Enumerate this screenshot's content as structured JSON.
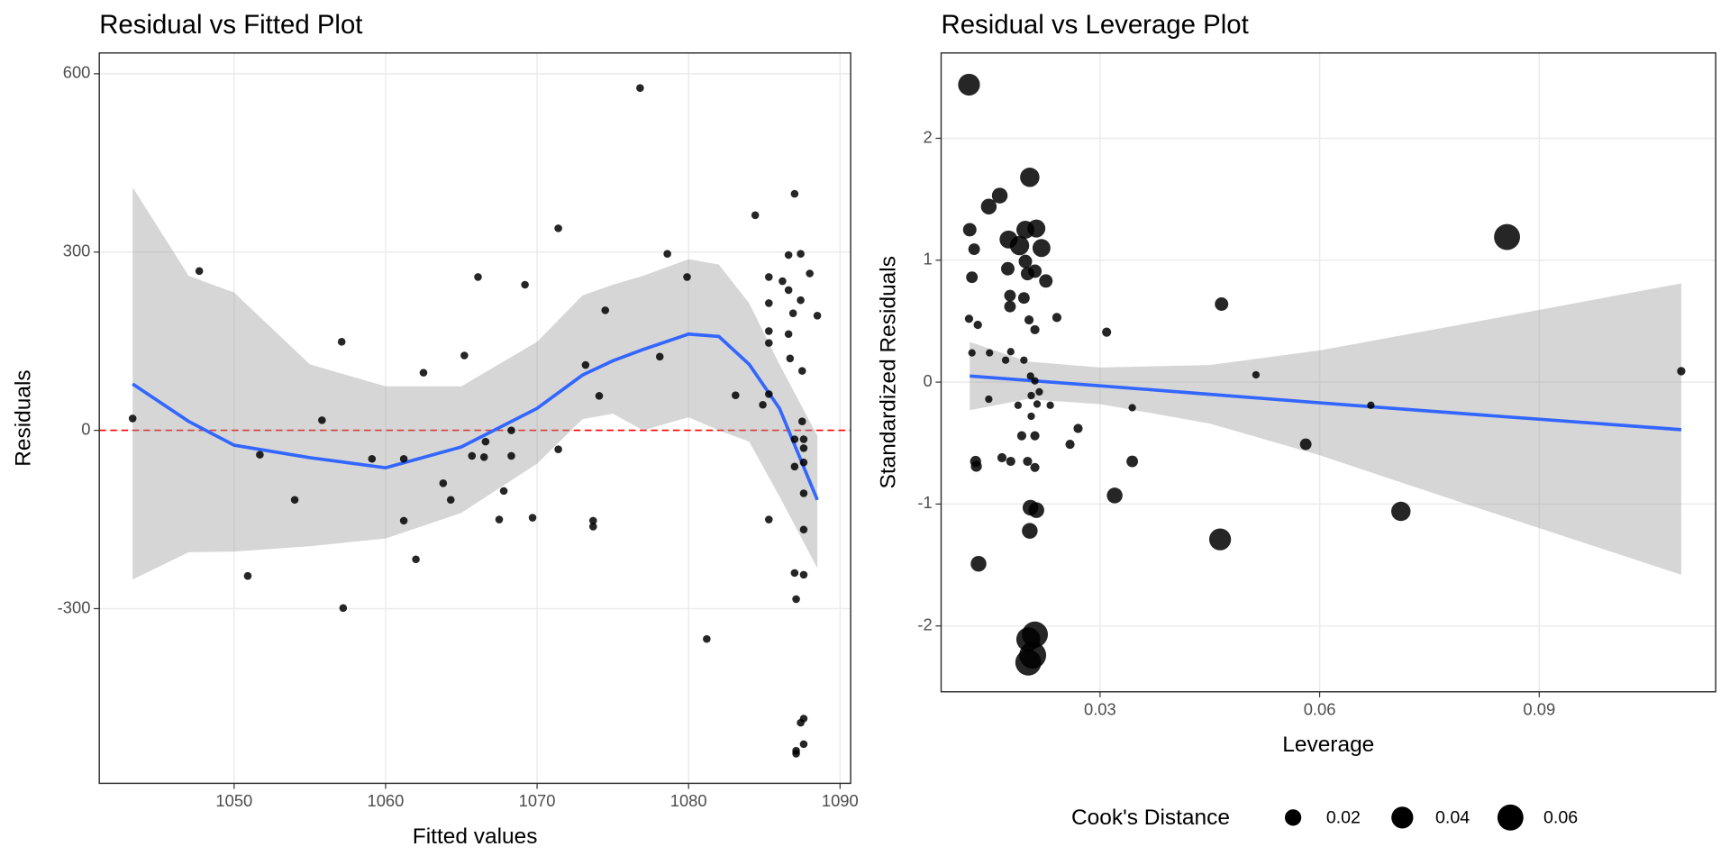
{
  "chart_data": [
    {
      "type": "scatter",
      "title": "Residual vs Fitted Plot",
      "x_label": "Fitted values",
      "y_label": "Residuals",
      "x": [
        1043.3,
        1047.7,
        1050.9,
        1051.7,
        1054.0,
        1055.8,
        1057.1,
        1057.2,
        1059.1,
        1061.2,
        1061.2,
        1062.0,
        1062.5,
        1063.8,
        1064.3,
        1065.2,
        1065.7,
        1066.1,
        1066.5,
        1066.6,
        1067.5,
        1067.8,
        1068.3,
        1068.3,
        1069.2,
        1069.7,
        1071.4,
        1071.4,
        1073.2,
        1073.7,
        1073.7,
        1074.1,
        1074.5,
        1076.8,
        1081.2,
        1078.1,
        1078.6,
        1079.9,
        1083.1,
        1084.4,
        1084.9,
        1085.3,
        1085.3,
        1085.3,
        1085.3,
        1085.3,
        1085.3,
        1086.2,
        1086.6,
        1086.6,
        1086.6,
        1086.7,
        1086.9,
        1087.0,
        1087.0,
        1087.0,
        1087.0,
        1087.1,
        1087.1,
        1087.1,
        1087.4,
        1087.4,
        1087.5,
        1087.5,
        1087.6,
        1087.6,
        1087.6,
        1087.6,
        1087.6,
        1087.6,
        1087.6,
        1087.4,
        1087.6,
        1088.0,
        1088.5
      ],
      "y": [
        20,
        268,
        -245,
        -41,
        -117,
        17,
        149,
        -299,
        -48,
        -48,
        -152,
        -217,
        97,
        -89,
        -117,
        126,
        -43,
        258,
        -45,
        -19,
        -150,
        -102,
        0,
        -43,
        245,
        -147,
        340,
        -32,
        110,
        -152,
        -162,
        58,
        202,
        576,
        -351,
        124,
        297,
        258,
        59,
        362,
        43,
        258,
        214,
        167,
        147,
        61,
        -150,
        251,
        295,
        236,
        162,
        121,
        197,
        398,
        -15,
        -61,
        -240,
        -284,
        -539,
        -544,
        297,
        219,
        100,
        15,
        -15,
        -30,
        -54,
        -106,
        -167,
        -243,
        -485,
        -492,
        -528,
        264,
        193
      ],
      "point_color": "#000000",
      "xlim": [
        1041.1,
        1090.7
      ],
      "ylim": [
        -594,
        635
      ],
      "xticks": [
        1050,
        1060,
        1070,
        1080,
        1090
      ],
      "yticks": [
        -300,
        0,
        300,
        600
      ],
      "grid": true,
      "hline": {
        "y": 0,
        "color": "#ff0000"
      },
      "smooth": {
        "color": "#3366ff",
        "band_color": "#999999",
        "x": [
          1043.3,
          1047,
          1050,
          1055,
          1060,
          1065,
          1070,
          1073,
          1075,
          1077,
          1080,
          1082,
          1084,
          1086,
          1088.5
        ],
        "y": [
          78,
          15,
          -25,
          -46,
          -63,
          -28,
          37,
          93,
          117,
          136,
          162,
          158,
          111,
          37,
          -117
        ],
        "upper": [
          409,
          260,
          232,
          111,
          74,
          74,
          149,
          227,
          245,
          260,
          288,
          279,
          214,
          111,
          -9
        ],
        "lower": [
          -251,
          -205,
          -204,
          -195,
          -182,
          -139,
          -56,
          19,
          28,
          0,
          22,
          0,
          -19,
          -111,
          -232
        ]
      }
    },
    {
      "type": "scatter",
      "title": "Residual vs Leverage Plot",
      "x_label": "Leverage",
      "y_label": "Standardized Residuals",
      "x": [
        0.0121,
        0.0163,
        0.0148,
        0.0204,
        0.0122,
        0.0128,
        0.0125,
        0.0121,
        0.0133,
        0.0125,
        0.0149,
        0.0148,
        0.013,
        0.0131,
        0.0134,
        0.0175,
        0.019,
        0.0174,
        0.0198,
        0.0177,
        0.0177,
        0.0196,
        0.0201,
        0.0198,
        0.0213,
        0.022,
        0.0211,
        0.0226,
        0.0203,
        0.0211,
        0.0241,
        0.0171,
        0.0178,
        0.0196,
        0.0205,
        0.0211,
        0.0217,
        0.0214,
        0.0188,
        0.0206,
        0.0232,
        0.0206,
        0.0211,
        0.0193,
        0.0166,
        0.0178,
        0.0201,
        0.0211,
        0.0259,
        0.027,
        0.0205,
        0.0213,
        0.0204,
        0.0211,
        0.0202,
        0.0208,
        0.0202,
        0.0309,
        0.032,
        0.0344,
        0.0344,
        0.0466,
        0.0464,
        0.0513,
        0.0581,
        0.067,
        0.0711,
        0.0856,
        0.1094
      ],
      "y": [
        2.44,
        1.53,
        1.44,
        1.68,
        1.25,
        1.09,
        0.86,
        0.52,
        0.47,
        0.24,
        0.24,
        -0.14,
        -0.65,
        -0.69,
        -1.49,
        1.17,
        1.12,
        0.93,
        0.99,
        0.71,
        0.62,
        0.69,
        0.89,
        1.25,
        1.26,
        1.1,
        0.91,
        0.83,
        0.51,
        0.43,
        0.53,
        0.18,
        0.25,
        0.18,
        0.05,
        0.01,
        -0.08,
        -0.18,
        -0.19,
        -0.28,
        -0.19,
        -0.11,
        -0.44,
        -0.44,
        -0.62,
        -0.65,
        -0.65,
        -0.7,
        -0.51,
        -0.38,
        -1.03,
        -1.05,
        -1.22,
        -2.07,
        -2.11,
        -2.24,
        -2.3,
        0.41,
        -0.93,
        -0.21,
        -0.65,
        0.64,
        -1.29,
        0.06,
        -0.51,
        -0.19,
        -1.06,
        1.19,
        0.09
      ],
      "sizes": [
        0.04,
        0.018,
        0.018,
        0.03,
        0.012,
        0.008,
        0.008,
        0.003,
        0.003,
        0.002,
        0.002,
        0.002,
        0.007,
        0.007,
        0.018,
        0.025,
        0.03,
        0.012,
        0.012,
        0.008,
        0.008,
        0.008,
        0.012,
        0.025,
        0.025,
        0.025,
        0.012,
        0.012,
        0.004,
        0.004,
        0.004,
        0.002,
        0.002,
        0.002,
        0.002,
        0.002,
        0.002,
        0.002,
        0.002,
        0.002,
        0.002,
        0.002,
        0.004,
        0.004,
        0.004,
        0.004,
        0.004,
        0.004,
        0.004,
        0.004,
        0.018,
        0.018,
        0.018,
        0.06,
        0.05,
        0.065,
        0.06,
        0.004,
        0.018,
        0.002,
        0.008,
        0.012,
        0.04,
        0.002,
        0.008,
        0.002,
        0.03,
        0.06,
        0.003
      ],
      "point_color": "#000000",
      "xlim": [
        0.00829,
        0.1141
      ],
      "ylim": [
        -2.54,
        2.7
      ],
      "xticks": [
        0.03,
        0.06,
        0.09
      ],
      "yticks": [
        -2,
        -1,
        0,
        1,
        2
      ],
      "grid": true,
      "smooth": {
        "color": "#3366ff",
        "band_color": "#999999",
        "x": [
          0.0122,
          0.02,
          0.03,
          0.045,
          0.06,
          0.08,
          0.1094
        ],
        "y": [
          0.05,
          0.015,
          -0.03,
          -0.1,
          -0.17,
          -0.26,
          -0.39
        ],
        "upper": [
          0.33,
          0.17,
          0.12,
          0.14,
          0.26,
          0.48,
          0.81
        ],
        "lower": [
          -0.23,
          -0.14,
          -0.18,
          -0.34,
          -0.6,
          -1.0,
          -1.58
        ]
      },
      "size_legend": {
        "title": "Cook's Distance",
        "values": [
          0.02,
          0.04,
          0.06
        ]
      }
    }
  ]
}
